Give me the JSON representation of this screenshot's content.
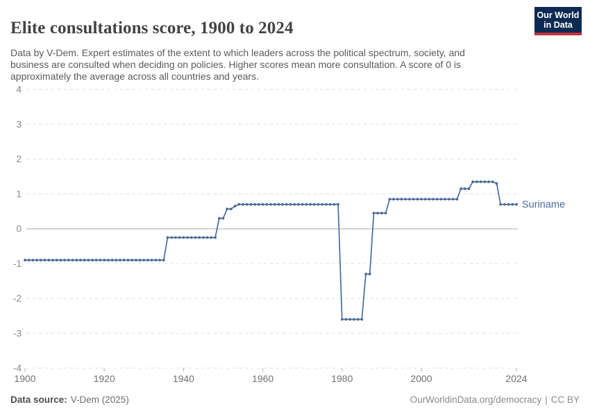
{
  "header": {
    "title": "Elite consultations score, 1900 to 2024",
    "subtitle": "Data by V-Dem. Expert estimates of the extent to which leaders across the political spectrum, society, and business are consulted when deciding on policies. Higher scores mean more consultation. A score of 0 is approximately the average across all countries and years.",
    "logo": {
      "line1": "Our World",
      "line2": "in Data",
      "bg_color": "#0D2B52",
      "accent_color": "#C5303E"
    }
  },
  "chart_data": {
    "type": "line",
    "title": "Elite consultations score, 1900 to 2024",
    "entity": "Suriname",
    "xlabel": "",
    "ylabel": "",
    "x_range": [
      1900,
      2024
    ],
    "y_range": [
      -4,
      4
    ],
    "x_ticks": [
      1900,
      1920,
      1940,
      1960,
      1980,
      2000,
      2024
    ],
    "y_ticks": [
      -4,
      -3,
      -2,
      -1,
      0,
      1,
      2,
      3,
      4
    ],
    "grid": "horizontal-dashed",
    "zero_line": true,
    "legend_position": "right-of-line-end",
    "line_color": "#4C6A9C",
    "series": [
      {
        "name": "Suriname",
        "color": "#4C6A9C",
        "segments": [
          {
            "start_year": 1900,
            "end_year": 1935,
            "value": -0.9
          },
          {
            "start_year": 1936,
            "end_year": 1948,
            "value": -0.25
          },
          {
            "start_year": 1949,
            "end_year": 1950,
            "value": 0.3
          },
          {
            "start_year": 1951,
            "end_year": 1952,
            "value": 0.57
          },
          {
            "start_year": 1953,
            "end_year": 1953,
            "value": 0.65
          },
          {
            "start_year": 1954,
            "end_year": 1979,
            "value": 0.7
          },
          {
            "start_year": 1980,
            "end_year": 1985,
            "value": -2.6
          },
          {
            "start_year": 1986,
            "end_year": 1987,
            "value": -1.3
          },
          {
            "start_year": 1988,
            "end_year": 1991,
            "value": 0.45
          },
          {
            "start_year": 1992,
            "end_year": 2009,
            "value": 0.85
          },
          {
            "start_year": 2010,
            "end_year": 2012,
            "value": 1.15
          },
          {
            "start_year": 2013,
            "end_year": 2018,
            "value": 1.35
          },
          {
            "start_year": 2019,
            "end_year": 2019,
            "value": 1.3
          },
          {
            "start_year": 2020,
            "end_year": 2024,
            "value": 0.7
          }
        ]
      }
    ]
  },
  "footer": {
    "source_label": "Data source:",
    "source_value": "V-Dem (2025)",
    "credit_link": "OurWorldinData.org/democracy",
    "separator": "|",
    "license": "CC BY"
  }
}
